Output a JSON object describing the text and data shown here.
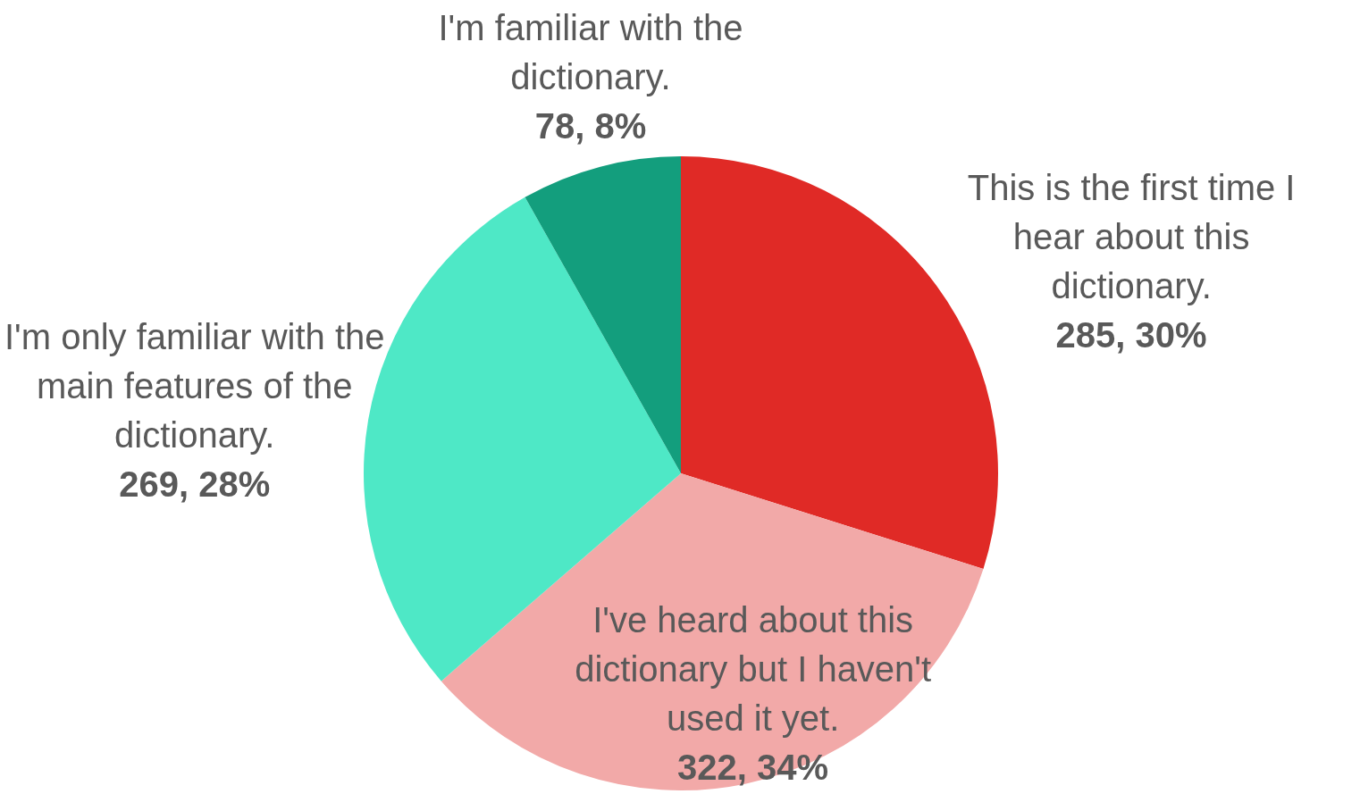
{
  "chart_data": {
    "type": "pie",
    "categories": [
      "This is the first time I hear about this dictionary.",
      "I've heard about this dictionary but I haven't used it yet.",
      "I'm only familiar with the main features of the dictionary.",
      "I'm familiar with the dictionary."
    ],
    "values": [
      285,
      322,
      269,
      78
    ],
    "colors": [
      "#e02a26",
      "#f2a9a8",
      "#4ee8c6",
      "#139e7d"
    ],
    "value_labels": [
      "285, 30%",
      "322, 34%",
      "269, 28%",
      "78, 8%"
    ]
  }
}
